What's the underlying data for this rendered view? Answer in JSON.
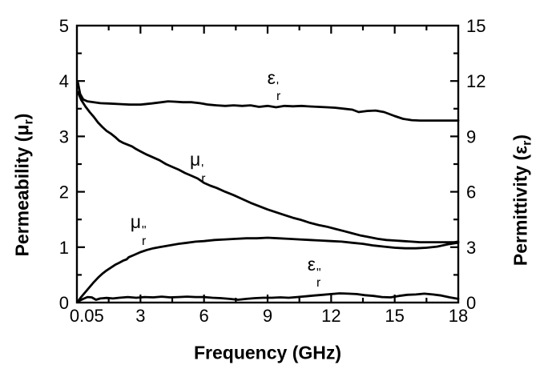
{
  "figure": {
    "background": "#ffffff",
    "line_color": "#000000"
  },
  "axes": {
    "left": {
      "title_prefix": "Permeability (",
      "symbol": "μ",
      "symbol_sub": "r",
      "title_suffix": ")"
    },
    "right": {
      "title_prefix": "Permittivity (",
      "symbol": "ε",
      "symbol_sub": "r",
      "title_suffix": ")"
    },
    "bottom": {
      "title": "Frequency  (GHz)"
    }
  },
  "chart_data": {
    "type": "line",
    "title": "",
    "grid": false,
    "legend": "none",
    "xlabel": "Frequency (GHz)",
    "ylabel_left": "Permeability (μr)",
    "ylabel_right": "Permittivity (εr)",
    "x_axis": {
      "min": 0,
      "max": 18,
      "major_ticks": [
        3,
        6,
        9,
        12,
        15
      ],
      "minor_ticks": [
        1.5,
        4.5,
        7.5,
        10.5,
        13.5,
        16.5
      ],
      "tick_labels": [
        {
          "label": "0.05",
          "f": 0.05
        },
        {
          "label": "3",
          "f": 3
        },
        {
          "label": "6",
          "f": 6
        },
        {
          "label": "9",
          "f": 9
        },
        {
          "label": "12",
          "f": 12
        },
        {
          "label": "15",
          "f": 15
        },
        {
          "label": "18",
          "f": 18
        }
      ]
    },
    "left_axis": {
      "min": 0,
      "max": 5,
      "major_ticks": [
        1,
        2,
        3,
        4
      ],
      "minor_ticks": [
        0.5,
        1.5,
        2.5,
        3.5,
        4.5
      ],
      "tick_labels": [
        {
          "label": "0",
          "v": 0
        },
        {
          "label": "1",
          "v": 1
        },
        {
          "label": "2",
          "v": 2
        },
        {
          "label": "3",
          "v": 3
        },
        {
          "label": "4",
          "v": 4
        },
        {
          "label": "5",
          "v": 5
        }
      ]
    },
    "right_axis": {
      "min": 0,
      "max": 15,
      "major_ticks": [
        3,
        6,
        9,
        12
      ],
      "minor_ticks": [
        1.5,
        4.5,
        7.5,
        10.5,
        13.5
      ],
      "tick_labels": [
        {
          "label": "0",
          "v": 0
        },
        {
          "label": "3",
          "v": 3
        },
        {
          "label": "6",
          "v": 6
        },
        {
          "label": "9",
          "v": 9
        },
        {
          "label": "12",
          "v": 12
        },
        {
          "label": "15",
          "v": 15
        }
      ]
    },
    "series": [
      {
        "name": "mu_r_prime",
        "label": "μr'",
        "axis": "left",
        "points": [
          [
            0.05,
            3.8
          ],
          [
            0.2,
            3.66
          ],
          [
            0.4,
            3.54
          ],
          [
            0.6,
            3.44
          ],
          [
            0.8,
            3.35
          ],
          [
            1.0,
            3.25
          ],
          [
            1.2,
            3.17
          ],
          [
            1.4,
            3.1
          ],
          [
            1.6,
            3.05
          ],
          [
            1.8,
            2.99
          ],
          [
            2.0,
            2.92
          ],
          [
            2.2,
            2.88
          ],
          [
            2.4,
            2.85
          ],
          [
            2.6,
            2.82
          ],
          [
            2.8,
            2.77
          ],
          [
            3.0,
            2.73
          ],
          [
            3.3,
            2.67
          ],
          [
            3.6,
            2.62
          ],
          [
            3.9,
            2.57
          ],
          [
            4.2,
            2.5
          ],
          [
            4.5,
            2.45
          ],
          [
            4.8,
            2.4
          ],
          [
            5.1,
            2.34
          ],
          [
            5.4,
            2.29
          ],
          [
            5.7,
            2.24
          ],
          [
            6.0,
            2.16
          ],
          [
            6.3,
            2.11
          ],
          [
            6.6,
            2.07
          ],
          [
            7.0,
            2.0
          ],
          [
            7.4,
            1.94
          ],
          [
            7.8,
            1.87
          ],
          [
            8.2,
            1.8
          ],
          [
            8.6,
            1.74
          ],
          [
            9.0,
            1.68
          ],
          [
            9.4,
            1.63
          ],
          [
            9.8,
            1.58
          ],
          [
            10.2,
            1.53
          ],
          [
            10.6,
            1.49
          ],
          [
            11.0,
            1.44
          ],
          [
            11.4,
            1.4
          ],
          [
            11.8,
            1.37
          ],
          [
            12.2,
            1.33
          ],
          [
            12.6,
            1.29
          ],
          [
            13.0,
            1.25
          ],
          [
            13.4,
            1.21
          ],
          [
            13.8,
            1.18
          ],
          [
            14.2,
            1.15
          ],
          [
            14.6,
            1.13
          ],
          [
            15.0,
            1.12
          ],
          [
            15.4,
            1.11
          ],
          [
            15.8,
            1.1
          ],
          [
            16.2,
            1.09
          ],
          [
            16.6,
            1.09
          ],
          [
            17.0,
            1.09
          ],
          [
            17.4,
            1.09
          ],
          [
            17.8,
            1.09
          ],
          [
            18.0,
            1.1
          ]
        ]
      },
      {
        "name": "mu_r_double_prime",
        "label": "μr\"",
        "axis": "left",
        "points": [
          [
            0.05,
            0.02
          ],
          [
            0.2,
            0.1
          ],
          [
            0.4,
            0.19
          ],
          [
            0.6,
            0.28
          ],
          [
            0.8,
            0.37
          ],
          [
            1.0,
            0.45
          ],
          [
            1.2,
            0.52
          ],
          [
            1.4,
            0.58
          ],
          [
            1.6,
            0.63
          ],
          [
            1.8,
            0.68
          ],
          [
            2.0,
            0.72
          ],
          [
            2.2,
            0.76
          ],
          [
            2.35,
            0.78
          ],
          [
            2.45,
            0.82
          ],
          [
            2.7,
            0.86
          ],
          [
            3.0,
            0.91
          ],
          [
            3.3,
            0.95
          ],
          [
            3.6,
            0.98
          ],
          [
            3.9,
            1.0
          ],
          [
            4.2,
            1.02
          ],
          [
            4.5,
            1.04
          ],
          [
            4.8,
            1.06
          ],
          [
            5.2,
            1.08
          ],
          [
            5.6,
            1.1
          ],
          [
            6.0,
            1.11
          ],
          [
            6.5,
            1.13
          ],
          [
            7.0,
            1.14
          ],
          [
            7.5,
            1.15
          ],
          [
            8.0,
            1.16
          ],
          [
            8.5,
            1.16
          ],
          [
            9.0,
            1.17
          ],
          [
            9.5,
            1.16
          ],
          [
            10.0,
            1.15
          ],
          [
            10.5,
            1.14
          ],
          [
            11.0,
            1.13
          ],
          [
            11.5,
            1.12
          ],
          [
            12.0,
            1.11
          ],
          [
            12.5,
            1.1
          ],
          [
            13.0,
            1.08
          ],
          [
            13.5,
            1.06
          ],
          [
            14.0,
            1.03
          ],
          [
            14.5,
            1.01
          ],
          [
            15.0,
            0.99
          ],
          [
            15.5,
            0.98
          ],
          [
            16.0,
            0.98
          ],
          [
            16.5,
            0.99
          ],
          [
            17.0,
            1.01
          ],
          [
            17.5,
            1.05
          ],
          [
            18.0,
            1.08
          ]
        ]
      },
      {
        "name": "eps_r_prime",
        "label": "εr'",
        "axis": "right",
        "points": [
          [
            0.05,
            11.9
          ],
          [
            0.15,
            11.3
          ],
          [
            0.3,
            11.0
          ],
          [
            0.5,
            10.9
          ],
          [
            0.8,
            10.85
          ],
          [
            1.1,
            10.8
          ],
          [
            1.5,
            10.78
          ],
          [
            2.0,
            10.75
          ],
          [
            2.5,
            10.72
          ],
          [
            3.0,
            10.72
          ],
          [
            3.5,
            10.78
          ],
          [
            4.0,
            10.85
          ],
          [
            4.3,
            10.9
          ],
          [
            4.6,
            10.88
          ],
          [
            5.0,
            10.85
          ],
          [
            5.4,
            10.85
          ],
          [
            5.8,
            10.8
          ],
          [
            6.2,
            10.72
          ],
          [
            6.6,
            10.68
          ],
          [
            7.0,
            10.65
          ],
          [
            7.4,
            10.68
          ],
          [
            7.8,
            10.65
          ],
          [
            8.2,
            10.68
          ],
          [
            8.6,
            10.6
          ],
          [
            9.0,
            10.65
          ],
          [
            9.4,
            10.58
          ],
          [
            9.8,
            10.65
          ],
          [
            10.2,
            10.63
          ],
          [
            10.6,
            10.65
          ],
          [
            11.0,
            10.62
          ],
          [
            11.4,
            10.6
          ],
          [
            11.8,
            10.58
          ],
          [
            12.2,
            10.55
          ],
          [
            12.6,
            10.5
          ],
          [
            13.0,
            10.45
          ],
          [
            13.3,
            10.32
          ],
          [
            13.7,
            10.38
          ],
          [
            14.1,
            10.4
          ],
          [
            14.5,
            10.32
          ],
          [
            15.0,
            10.1
          ],
          [
            15.4,
            9.95
          ],
          [
            15.8,
            9.88
          ],
          [
            16.2,
            9.86
          ],
          [
            16.6,
            9.86
          ],
          [
            17.0,
            9.86
          ],
          [
            17.4,
            9.86
          ],
          [
            17.8,
            9.86
          ],
          [
            18.0,
            9.86
          ]
        ]
      },
      {
        "name": "eps_r_double_prime",
        "label": "εr\"",
        "axis": "right",
        "points": [
          [
            0.05,
            0.06
          ],
          [
            0.3,
            0.2
          ],
          [
            0.5,
            0.3
          ],
          [
            0.7,
            0.28
          ],
          [
            0.9,
            0.15
          ],
          [
            1.1,
            0.22
          ],
          [
            1.4,
            0.25
          ],
          [
            1.7,
            0.22
          ],
          [
            2.0,
            0.26
          ],
          [
            2.4,
            0.3
          ],
          [
            2.8,
            0.26
          ],
          [
            3.2,
            0.3
          ],
          [
            3.6,
            0.28
          ],
          [
            4.0,
            0.32
          ],
          [
            4.4,
            0.28
          ],
          [
            4.8,
            0.3
          ],
          [
            5.2,
            0.32
          ],
          [
            5.6,
            0.3
          ],
          [
            6.0,
            0.3
          ],
          [
            6.4,
            0.26
          ],
          [
            6.8,
            0.24
          ],
          [
            7.2,
            0.2
          ],
          [
            7.6,
            0.15
          ],
          [
            8.0,
            0.2
          ],
          [
            8.4,
            0.24
          ],
          [
            8.8,
            0.26
          ],
          [
            9.2,
            0.26
          ],
          [
            9.6,
            0.28
          ],
          [
            10.0,
            0.26
          ],
          [
            10.4,
            0.3
          ],
          [
            10.8,
            0.34
          ],
          [
            11.2,
            0.38
          ],
          [
            11.6,
            0.42
          ],
          [
            12.0,
            0.46
          ],
          [
            12.4,
            0.5
          ],
          [
            12.8,
            0.48
          ],
          [
            13.2,
            0.46
          ],
          [
            13.6,
            0.4
          ],
          [
            14.0,
            0.36
          ],
          [
            14.4,
            0.3
          ],
          [
            14.8,
            0.28
          ],
          [
            15.2,
            0.36
          ],
          [
            15.6,
            0.42
          ],
          [
            16.0,
            0.44
          ],
          [
            16.4,
            0.48
          ],
          [
            16.8,
            0.44
          ],
          [
            17.2,
            0.38
          ],
          [
            17.6,
            0.28
          ],
          [
            18.0,
            0.2
          ]
        ]
      }
    ],
    "annotations": [
      {
        "name": "eps-prime-label",
        "symbol": "ε",
        "sub": "r",
        "prime": "'",
        "axis": "right",
        "f": 9.3,
        "v": 11.8
      },
      {
        "name": "mu-prime-label",
        "symbol": "μ",
        "sub": "r",
        "prime": "'",
        "axis": "left",
        "f": 5.7,
        "v": 2.45
      },
      {
        "name": "mu-double-prime-label",
        "symbol": "μ",
        "sub": "r",
        "prime": "\"",
        "axis": "left",
        "f": 2.9,
        "v": 1.33
      },
      {
        "name": "eps-double-prime-label",
        "symbol": "ε",
        "sub": "r",
        "prime": "\"",
        "axis": "right",
        "f": 11.2,
        "v": 1.7
      }
    ]
  }
}
